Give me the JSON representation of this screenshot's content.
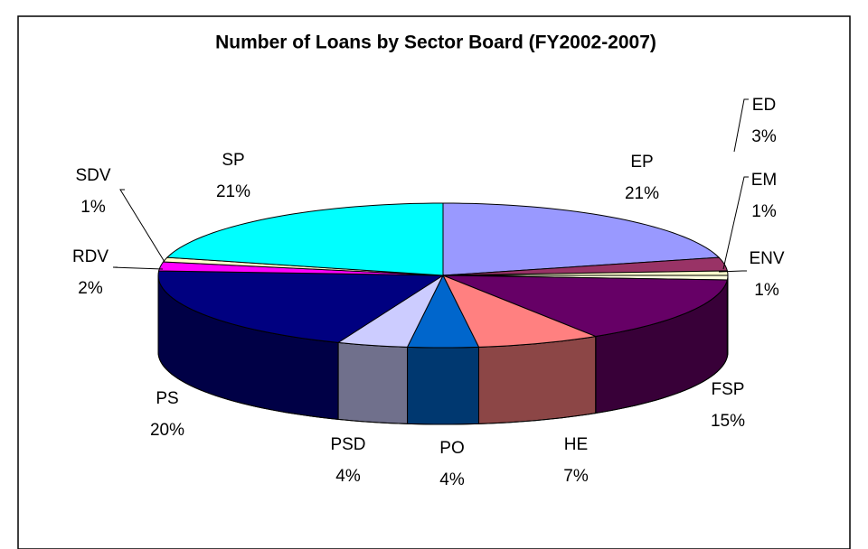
{
  "chart_data": {
    "type": "pie",
    "title": "Number of Loans by Sector Board (FY2002-2007)",
    "categories": [
      "EP",
      "ED",
      "EM",
      "ENV",
      "FSP",
      "HE",
      "PO",
      "PSD",
      "PS",
      "RDV",
      "SDV",
      "SP"
    ],
    "values": [
      21,
      3,
      1,
      1,
      15,
      7,
      4,
      4,
      20,
      2,
      1,
      21
    ],
    "value_labels": [
      "21%",
      "3%",
      "1%",
      "1%",
      "15%",
      "7%",
      "4%",
      "4%",
      "20%",
      "2%",
      "1%",
      "21%"
    ],
    "colors": [
      "#9999ff",
      "#993366",
      "#ffffcc",
      "#ffffe0",
      "#660066",
      "#ff8080",
      "#0066cc",
      "#ccccff",
      "#000080",
      "#ff00ff",
      "#ffffcc",
      "#00ffff"
    ]
  }
}
